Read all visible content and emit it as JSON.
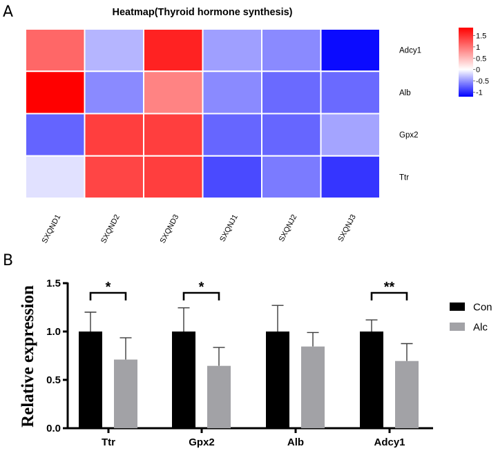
{
  "chart_data": [
    {
      "type": "heatmap",
      "panel_label": "A",
      "title": "Heatmap(Thyroid hormone synthesis)",
      "rows": [
        "Adcy1",
        "Alb",
        "Gpx2",
        "Ttr"
      ],
      "columns": [
        "SXQND1",
        "SXQND2",
        "SXQND3",
        "SXQNJ1",
        "SXQNJ2",
        "SXQNJ3"
      ],
      "values": [
        [
          1.1,
          -0.35,
          1.6,
          -0.45,
          -0.55,
          -1.15
        ],
        [
          1.85,
          -0.55,
          0.9,
          -0.55,
          -0.7,
          -0.7
        ],
        [
          -0.73,
          1.4,
          1.4,
          -0.72,
          -0.72,
          -0.43
        ],
        [
          -0.14,
          1.35,
          1.4,
          -0.85,
          -0.62,
          -0.95
        ]
      ],
      "colorbar": {
        "ticks": [
          1.5,
          1,
          0.5,
          0,
          -0.5,
          -1
        ],
        "tick_labels": [
          "1.5",
          "1",
          "0.5",
          "0",
          "-0.5",
          "-1"
        ],
        "range": [
          -1.2,
          1.85
        ],
        "low_color": "#0000ff",
        "mid_color": "#ffffff",
        "high_color": "#ff0000"
      }
    },
    {
      "type": "bar",
      "panel_label": "B",
      "title": "",
      "xlabel": "",
      "ylabel": "Relative expression",
      "ylim": [
        0,
        1.5
      ],
      "yticks": [
        0.0,
        0.5,
        1.0,
        1.5
      ],
      "ytick_labels": [
        "0.0",
        "0.5",
        "1.0",
        "1.5"
      ],
      "categories": [
        "Ttr",
        "Gpx2",
        "Alb",
        "Adcy1"
      ],
      "series": [
        {
          "name": "Con",
          "color": "#000000",
          "values": [
            1.0,
            1.0,
            1.0,
            1.0
          ],
          "error_upper": [
            1.2,
            1.245,
            1.27,
            1.12
          ]
        },
        {
          "name": "Alc",
          "color": "#a2a2a6",
          "values": [
            0.71,
            0.645,
            0.845,
            0.695
          ],
          "error_upper": [
            0.935,
            0.835,
            0.99,
            0.875
          ]
        }
      ],
      "significance": [
        {
          "category": "Ttr",
          "label": "*"
        },
        {
          "category": "Gpx2",
          "label": "*"
        },
        {
          "category": "Alb",
          "label": ""
        },
        {
          "category": "Adcy1",
          "label": "**"
        }
      ],
      "significance_bracket_level": 1.4,
      "legend": {
        "position": "right",
        "entries": [
          "Con",
          "Alc"
        ]
      },
      "grid": false
    }
  ]
}
